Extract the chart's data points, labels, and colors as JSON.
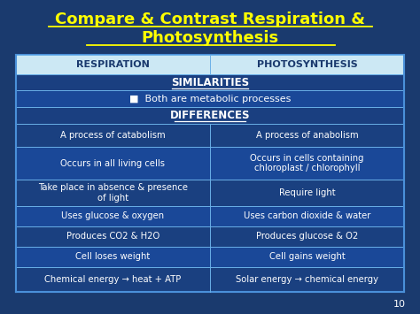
{
  "title_line1": "Compare & Contrast Respiration &",
  "title_line2": "Photosynthesis",
  "title_color": "#FFFF00",
  "bg_color": "#1a3a6e",
  "table_bg": "#1a4a8a",
  "header_row_bg": "#cce8f4",
  "header_row_color": "#1a3a6e",
  "row_text_color": "#FFFFFF",
  "col1_header": "RESPIRATION",
  "col2_header": "PHOTOSYNTHESIS",
  "similarities_label": "SIMILARITIES",
  "similarity_row": "■  Both are metabolic processes",
  "differences_label": "DIFFERENCES",
  "rows": [
    [
      "A process of catabolism",
      "A process of anabolism"
    ],
    [
      "Occurs in all living cells",
      "Occurs in cells containing\nchloroplast / chlorophyll"
    ],
    [
      "Take place in absence & presence\nof light",
      "Require light"
    ],
    [
      "Uses glucose & oxygen",
      "Uses carbon dioxide & water"
    ],
    [
      "Produces CO2 & H2O",
      "Produces glucose & O2"
    ],
    [
      "Cell loses weight",
      "Cell gains weight"
    ],
    [
      "Chemical energy → heat + ATP",
      "Solar energy → chemical energy"
    ]
  ],
  "page_number": "10",
  "border_color": "#4a90d9",
  "divider_color": "#6ab0e8",
  "row_colors": [
    "#1a4080",
    "#1a4898",
    "#1a4080",
    "#1a4898",
    "#1a4080",
    "#1a4898",
    "#1a4080"
  ],
  "sim_row_bg": "#1a4898",
  "sim_header_bg": "#1a3f80",
  "diff_header_bg": "#1a3f80"
}
